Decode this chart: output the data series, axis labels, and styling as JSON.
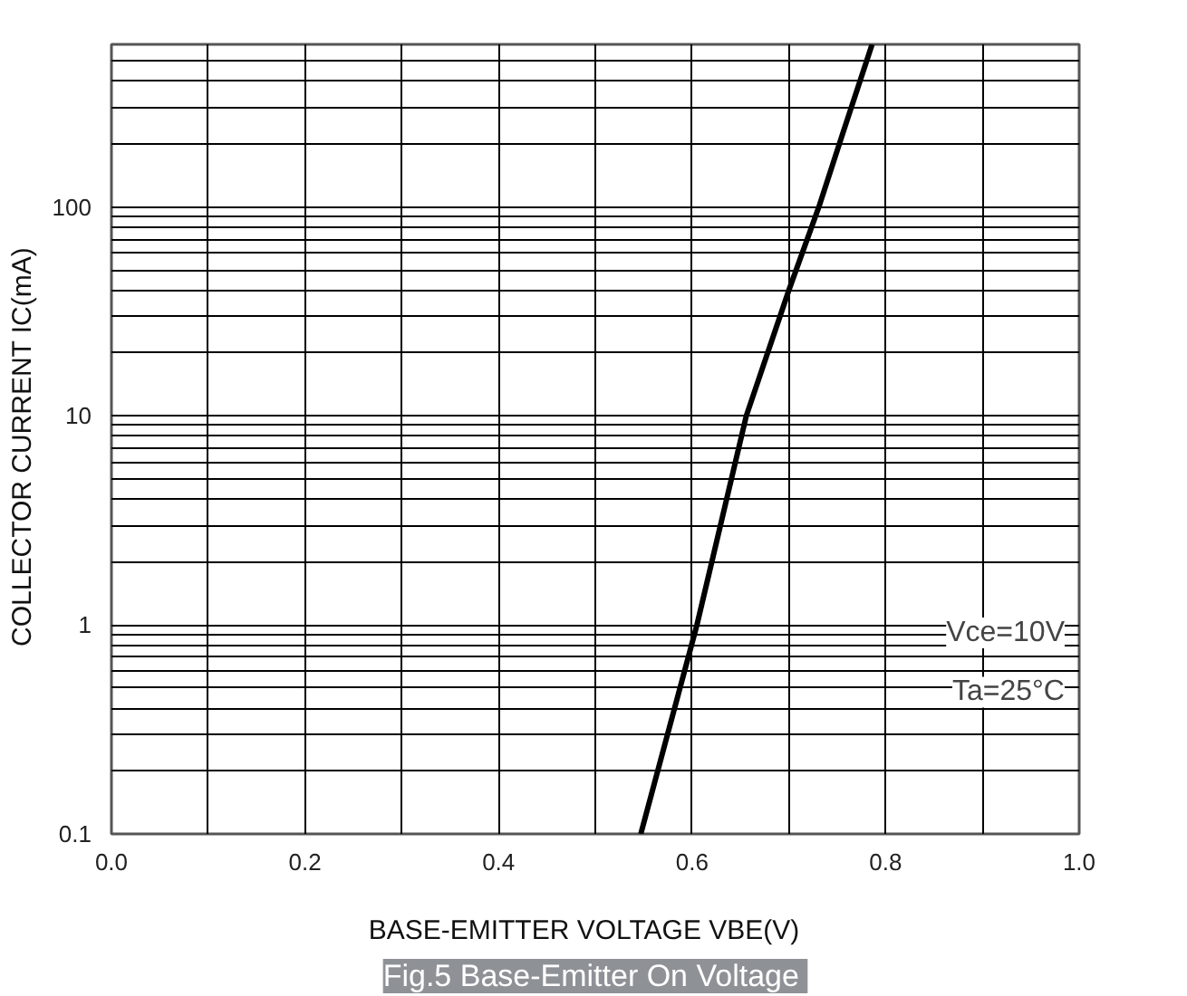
{
  "chart_data": {
    "type": "line",
    "title": "Fig.5  Base-Emitter On Voltage",
    "xlabel": "BASE-EMITTER VOLTAGE    VBE(V)",
    "ylabel": "COLLECTOR CURRENT   IC(mA)",
    "x": [
      0.547,
      0.605,
      0.656,
      0.7,
      0.731,
      0.755,
      0.786
    ],
    "series": [
      {
        "color": "#000000",
        "values": [
          0.1,
          1,
          10,
          40,
          100,
          220,
          600
        ]
      }
    ],
    "xlim": [
      0.0,
      1.0
    ],
    "xticks": [
      {
        "value": 0.0,
        "label": "0.0"
      },
      {
        "value": 0.1,
        "label": null
      },
      {
        "value": 0.2,
        "label": "0.2"
      },
      {
        "value": 0.3,
        "label": null
      },
      {
        "value": 0.4,
        "label": "0.4"
      },
      {
        "value": 0.5,
        "label": null
      },
      {
        "value": 0.6,
        "label": "0.6"
      },
      {
        "value": 0.7,
        "label": null
      },
      {
        "value": 0.8,
        "label": "0.8"
      },
      {
        "value": 0.9,
        "label": null
      },
      {
        "value": 1.0,
        "label": "1.0"
      }
    ],
    "ylim": [
      0.1,
      600
    ],
    "yticks": [
      0.1,
      1,
      10,
      100
    ],
    "log": "y",
    "grid": true,
    "line_style": "solid",
    "annotations": [
      "Vce=10V",
      "Ta=25°C"
    ]
  }
}
